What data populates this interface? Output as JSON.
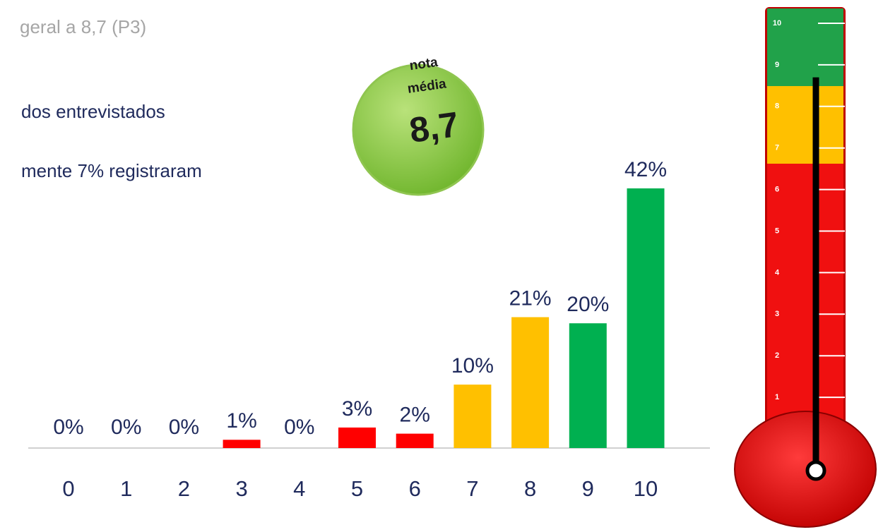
{
  "texts": [
    "geral a 8,7 (P3)",
    "dos entrevistados",
    "mente 7% registraram"
  ],
  "mean": {
    "caption": [
      "nota",
      "média"
    ],
    "value": 8.7,
    "label": "8,7"
  },
  "thermometer": {
    "ticks": [
      1,
      2,
      3,
      4,
      5,
      6,
      7,
      8,
      9,
      10
    ]
  },
  "chart_data": {
    "type": "bar",
    "categories": [
      "0",
      "1",
      "2",
      "3",
      "4",
      "5",
      "6",
      "7",
      "8",
      "9",
      "10"
    ],
    "values": [
      0,
      0,
      0,
      1,
      0,
      3,
      2,
      10,
      21,
      20,
      42
    ],
    "value_labels": [
      "0%",
      "0%",
      "0%",
      "1%",
      "0%",
      "3%",
      "2%",
      "10%",
      "21%",
      "20%",
      "42%"
    ],
    "colors": [
      "#ff0000",
      "#ff0000",
      "#ff0000",
      "#ff0000",
      "#ff0000",
      "#ff0000",
      "#ff0000",
      "#ffc000",
      "#ffc000",
      "#00b050",
      "#00b050"
    ],
    "ylim": [
      0,
      42
    ],
    "grid": false
  }
}
